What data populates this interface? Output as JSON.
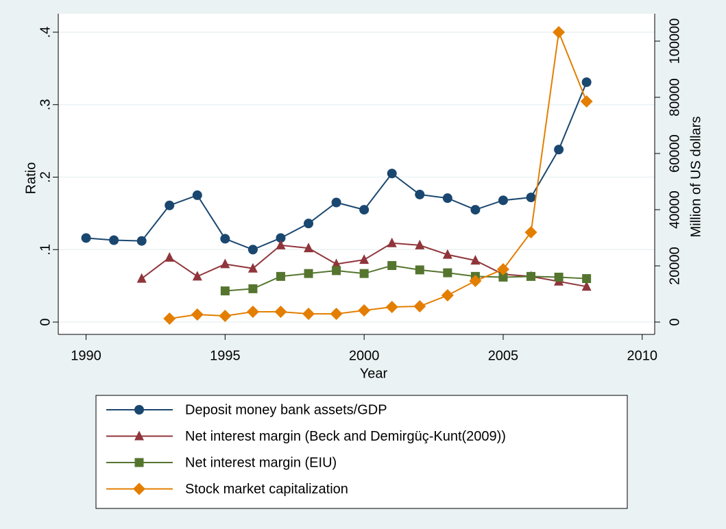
{
  "chart_data": {
    "type": "line",
    "x": [
      1990,
      1991,
      1992,
      1993,
      1994,
      1995,
      1996,
      1997,
      1998,
      1999,
      2000,
      2001,
      2002,
      2003,
      2004,
      2005,
      2006,
      2007,
      2008
    ],
    "xlabel": "Year",
    "ylabel": "Ratio",
    "y2label": "Million of US dollars",
    "xlim": [
      1989.0,
      2010.45
    ],
    "xticks": [
      1990,
      1995,
      2000,
      2005,
      2010
    ],
    "ylim": [
      -0.017,
      0.4255
    ],
    "yticks": [
      0,
      {
        "value": 0.1,
        "label": ".1"
      },
      {
        "value": 0.2,
        "label": ".2"
      },
      {
        "value": 0.3,
        "label": ".3"
      },
      {
        "value": 0.4,
        "label": ".4"
      }
    ],
    "y2lim": [
      -4390,
      109760
    ],
    "y2ticks": [
      0,
      20000,
      40000,
      60000,
      80000,
      100000
    ],
    "grid": true,
    "series": [
      {
        "name": "Deposit money bank assets/GDP",
        "color": "#1a476f",
        "marker": "circle",
        "values": [
          0.116,
          0.113,
          0.112,
          0.161,
          0.175,
          0.115,
          0.1,
          0.116,
          0.136,
          0.165,
          0.155,
          0.205,
          0.176,
          0.171,
          0.155,
          0.168,
          0.172,
          0.238,
          0.331
        ]
      },
      {
        "name": "Net interest margin (Beck and Demirgüç-Kunt(2009))",
        "color": "#90353b",
        "marker": "triangle",
        "values": [
          null,
          null,
          0.06,
          0.089,
          0.063,
          0.08,
          0.074,
          0.106,
          0.102,
          0.08,
          0.086,
          0.109,
          0.106,
          0.093,
          0.085,
          0.066,
          0.063,
          0.056,
          0.049
        ]
      },
      {
        "name": "Net interest margin (EIU)",
        "color": "#55752f",
        "marker": "square",
        "values": [
          null,
          null,
          null,
          null,
          null,
          0.043,
          0.046,
          0.063,
          0.067,
          0.071,
          0.067,
          0.078,
          0.072,
          0.068,
          0.063,
          0.062,
          0.063,
          0.062,
          0.06
        ]
      },
      {
        "name": "Stock market capitalization",
        "color": "#e37e00",
        "marker": "diamond",
        "axis": "y2",
        "values": [
          null,
          null,
          null,
          1220,
          2680,
          2200,
          3660,
          3660,
          2930,
          2930,
          4150,
          5370,
          5610,
          9510,
          14630,
          18780,
          31950,
          103170,
          78540
        ]
      }
    ]
  }
}
